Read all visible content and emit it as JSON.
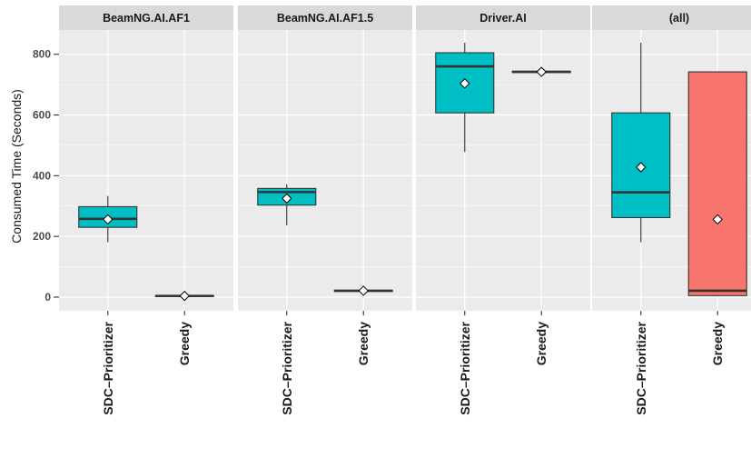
{
  "chart_data": {
    "type": "boxplot",
    "ylabel": "Consumed Time (Seconds)",
    "xlabel": "",
    "ylim": [
      -45,
      880
    ],
    "yticks": [
      0,
      200,
      400,
      600,
      800
    ],
    "categories": [
      "SDC–Prioritizer",
      "Greedy"
    ],
    "colors": {
      "SDC–Prioritizer": "#00bfc4",
      "Greedy": "#f8766d",
      "panel_bg": "#ebebeb",
      "strip_bg": "#d9d9d9",
      "grid": "#ffffff"
    },
    "grid": true,
    "legend": "none",
    "panels": [
      {
        "title": "BeamNG.AI.AF1",
        "boxes": [
          {
            "category": "SDC–Prioritizer",
            "min": 181,
            "q1": 230,
            "median": 258,
            "q3": 298,
            "max": 333,
            "mean": 256
          },
          {
            "category": "Greedy",
            "min": 3,
            "q1": 3,
            "median": 4,
            "q3": 5,
            "max": 5,
            "mean": 4
          }
        ]
      },
      {
        "title": "BeamNG.AI.AF1.5",
        "boxes": [
          {
            "category": "SDC–Prioritizer",
            "min": 236,
            "q1": 303,
            "median": 346,
            "q3": 358,
            "max": 372,
            "mean": 325
          },
          {
            "category": "Greedy",
            "min": 20,
            "q1": 20,
            "median": 21,
            "q3": 22,
            "max": 22,
            "mean": 21
          }
        ]
      },
      {
        "title": "Driver.AI",
        "boxes": [
          {
            "category": "SDC–Prioritizer",
            "min": 478,
            "q1": 607,
            "median": 760,
            "q3": 805,
            "max": 838,
            "mean": 704
          },
          {
            "category": "Greedy",
            "min": 740,
            "q1": 740,
            "median": 742,
            "q3": 744,
            "max": 744,
            "mean": 742
          }
        ]
      },
      {
        "title": "(all)",
        "boxes": [
          {
            "category": "SDC–Prioritizer",
            "min": 181,
            "q1": 262,
            "median": 345,
            "q3": 607,
            "max": 838,
            "mean": 428
          },
          {
            "category": "Greedy",
            "min": 3,
            "q1": 5,
            "median": 21,
            "q3": 742,
            "max": 744,
            "mean": 256
          }
        ]
      }
    ]
  }
}
